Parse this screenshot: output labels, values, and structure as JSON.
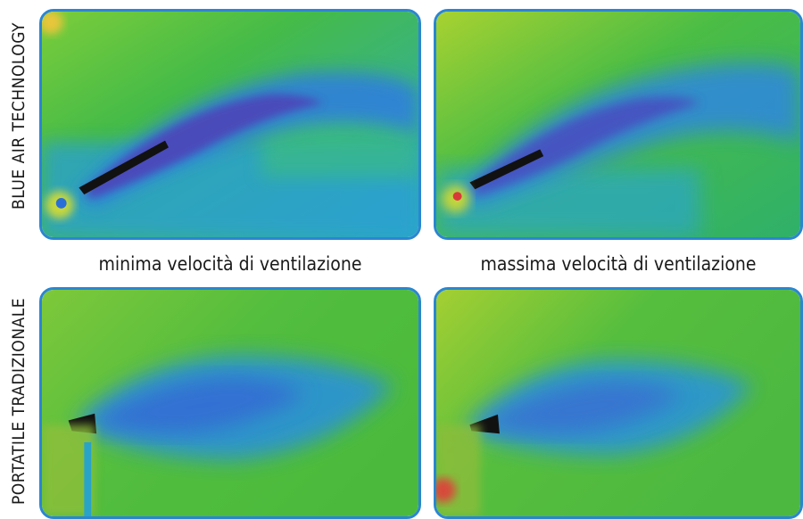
{
  "rows": {
    "top_label": "BLUE AIR TECHNOLOGY",
    "bottom_label": "PORTATILE TRADIZIONALE"
  },
  "captions": {
    "left": "minima velocità di ventilazione",
    "right": "massima velocità di ventilazione"
  },
  "palette": {
    "frame": "#2a86d2",
    "green": "#4fbf3a",
    "yellow_green": "#9acd32",
    "cyan": "#1aa7d6",
    "blue": "#2f6fd8",
    "purple": "#5a3ca8",
    "black": "#111111"
  },
  "images": [
    {
      "id": "blue-air-min",
      "depicts": "thermal-airflow"
    },
    {
      "id": "blue-air-max",
      "depicts": "thermal-airflow"
    },
    {
      "id": "traditional-min",
      "depicts": "thermal-airflow"
    },
    {
      "id": "traditional-max",
      "depicts": "thermal-airflow"
    }
  ]
}
